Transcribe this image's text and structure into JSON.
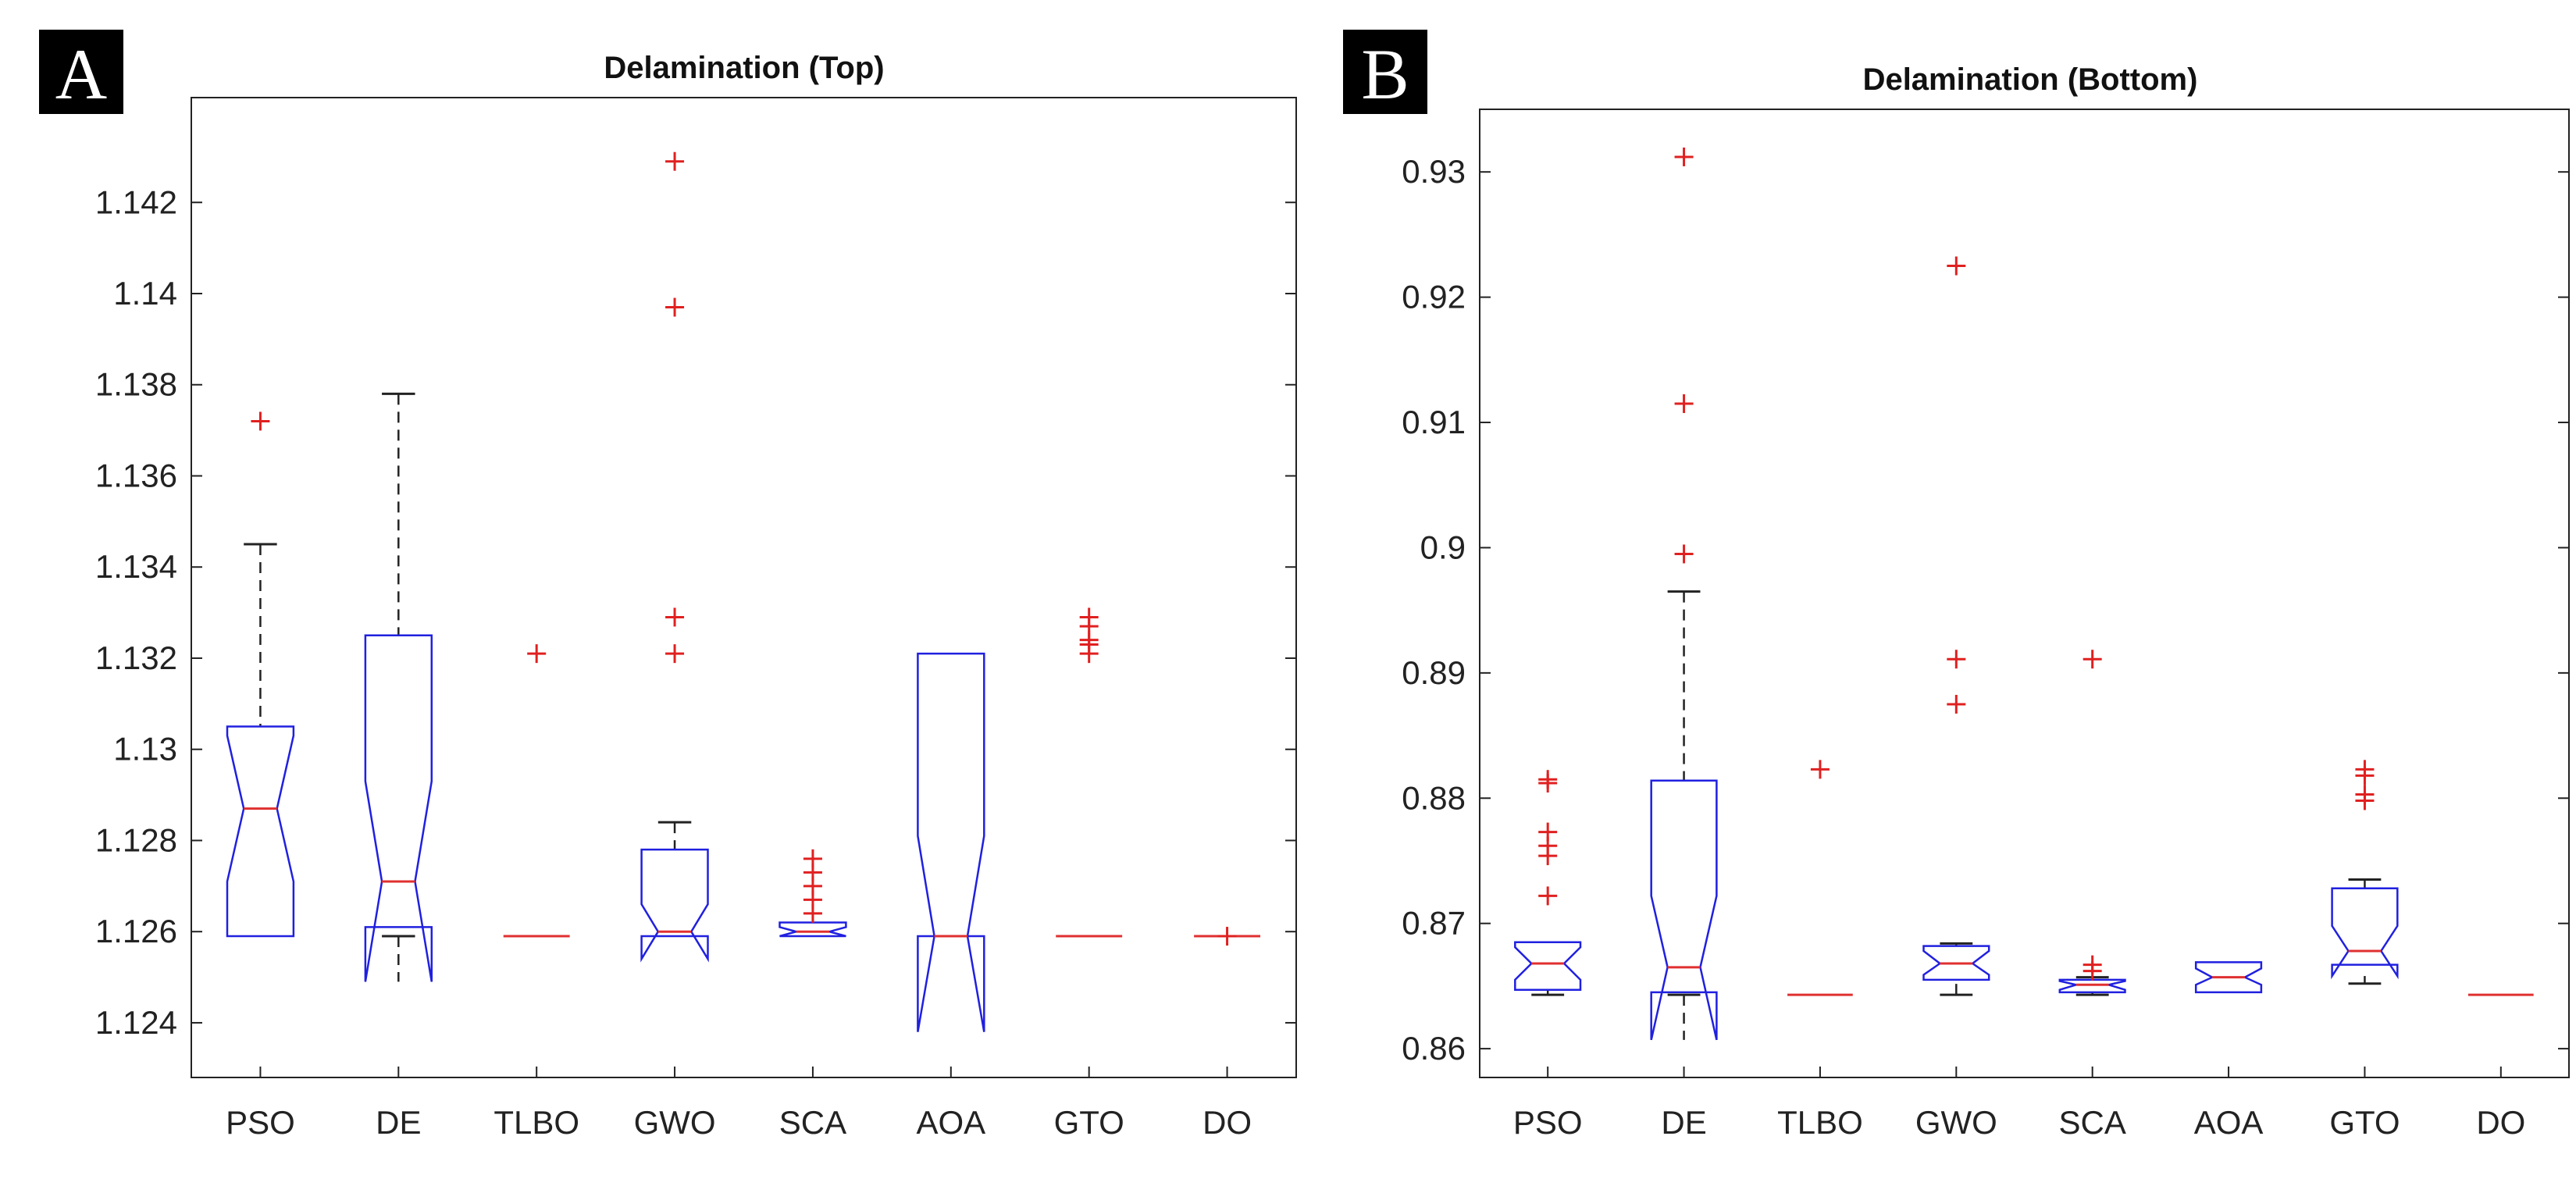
{
  "figure": {
    "panels": [
      {
        "label": "A",
        "label_bg": "#000000",
        "label_color": "#ffffff"
      },
      {
        "label": "B",
        "label_bg": "#000000",
        "label_color": "#ffffff"
      }
    ]
  },
  "colors": {
    "box": "#2020e0",
    "median": "#e03030",
    "outlier": "#e02020",
    "whisker": "#222222",
    "axis": "#222222"
  },
  "chart_data": [
    {
      "type": "boxplot",
      "panel": "A",
      "title": "Delamination (Top)",
      "xlabel": "",
      "ylabel": "",
      "categories": [
        "PSO",
        "DE",
        "TLBO",
        "GWO",
        "SCA",
        "AOA",
        "GTO",
        "DO"
      ],
      "ylim": [
        1.1228,
        1.1443
      ],
      "yticks": [
        1.124,
        1.126,
        1.128,
        1.13,
        1.132,
        1.134,
        1.136,
        1.138,
        1.14,
        1.142
      ],
      "ytick_labels": [
        "1.124",
        "1.126",
        "1.128",
        "1.13",
        "1.132",
        "1.134",
        "1.136",
        "1.138",
        "1.14",
        "1.142"
      ],
      "grid": false,
      "boxes": [
        {
          "category": "PSO",
          "q1": 1.1259,
          "median": 1.1287,
          "q3": 1.1305,
          "notch_lo": 1.1271,
          "notch_hi": 1.1303,
          "whisker_lo": 1.1259,
          "whisker_hi": 1.1345,
          "outliers": [
            1.1372
          ]
        },
        {
          "category": "DE",
          "q1": 1.1261,
          "median": 1.1271,
          "q3": 1.1325,
          "notch_lo": 1.1249,
          "notch_hi": 1.1293,
          "whisker_lo": 1.1259,
          "whisker_hi": 1.1378,
          "outliers": []
        },
        {
          "category": "TLBO",
          "q1": 1.1259,
          "median": 1.1259,
          "q3": 1.1259,
          "notch_lo": 1.1259,
          "notch_hi": 1.1259,
          "whisker_lo": 1.1259,
          "whisker_hi": 1.1259,
          "outliers": [
            1.1321
          ]
        },
        {
          "category": "GWO",
          "q1": 1.1259,
          "median": 1.126,
          "q3": 1.1278,
          "notch_lo": 1.1254,
          "notch_hi": 1.1266,
          "whisker_lo": 1.1259,
          "whisker_hi": 1.1284,
          "outliers": [
            1.1321,
            1.1329,
            1.1397,
            1.1429
          ]
        },
        {
          "category": "SCA",
          "q1": 1.1259,
          "median": 1.126,
          "q3": 1.1262,
          "notch_lo": 1.1259,
          "notch_hi": 1.1261,
          "whisker_lo": 1.1259,
          "whisker_hi": 1.1262,
          "outliers": [
            1.1264,
            1.1267,
            1.127,
            1.1273,
            1.1276
          ]
        },
        {
          "category": "AOA",
          "q1": 1.1259,
          "median": 1.1259,
          "q3": 1.1321,
          "notch_lo": 1.1238,
          "notch_hi": 1.1281,
          "whisker_lo": 1.1259,
          "whisker_hi": 1.1321,
          "outliers": []
        },
        {
          "category": "GTO",
          "q1": 1.1259,
          "median": 1.1259,
          "q3": 1.1259,
          "notch_lo": 1.1259,
          "notch_hi": 1.1259,
          "whisker_lo": 1.1259,
          "whisker_hi": 1.1259,
          "outliers": [
            1.1321,
            1.1323,
            1.1324,
            1.1327,
            1.1329
          ]
        },
        {
          "category": "DO",
          "q1": 1.1259,
          "median": 1.1259,
          "q3": 1.1259,
          "notch_lo": 1.1259,
          "notch_hi": 1.1259,
          "whisker_lo": 1.1259,
          "whisker_hi": 1.1259,
          "outliers": [
            1.1259
          ]
        }
      ]
    },
    {
      "type": "boxplot",
      "panel": "B",
      "title": "Delamination (Bottom)",
      "xlabel": "",
      "ylabel": "",
      "categories": [
        "PSO",
        "DE",
        "TLBO",
        "GWO",
        "SCA",
        "AOA",
        "GTO",
        "DO"
      ],
      "ylim": [
        0.8577,
        0.935
      ],
      "yticks": [
        0.86,
        0.87,
        0.88,
        0.89,
        0.9,
        0.91,
        0.92,
        0.93
      ],
      "ytick_labels": [
        "0.86",
        "0.87",
        "0.88",
        "0.89",
        "0.9",
        "0.91",
        "0.92",
        "0.93"
      ],
      "grid": false,
      "boxes": [
        {
          "category": "PSO",
          "q1": 0.8647,
          "median": 0.8668,
          "q3": 0.8685,
          "notch_lo": 0.8655,
          "notch_hi": 0.8681,
          "whisker_lo": 0.8643,
          "whisker_hi": 0.8685,
          "outliers": [
            0.8722,
            0.8754,
            0.8762,
            0.8773,
            0.8812,
            0.8815
          ]
        },
        {
          "category": "DE",
          "q1": 0.8645,
          "median": 0.8665,
          "q3": 0.8814,
          "notch_lo": 0.8607,
          "notch_hi": 0.8722,
          "whisker_lo": 0.8643,
          "whisker_hi": 0.8965,
          "outliers": [
            0.8995,
            0.9115,
            0.9312
          ]
        },
        {
          "category": "TLBO",
          "q1": 0.8643,
          "median": 0.8643,
          "q3": 0.8643,
          "notch_lo": 0.8643,
          "notch_hi": 0.8643,
          "whisker_lo": 0.8643,
          "whisker_hi": 0.8643,
          "outliers": [
            0.8823
          ]
        },
        {
          "category": "GWO",
          "q1": 0.8655,
          "median": 0.8668,
          "q3": 0.8682,
          "notch_lo": 0.8659,
          "notch_hi": 0.8678,
          "whisker_lo": 0.8643,
          "whisker_hi": 0.8684,
          "outliers": [
            0.8875,
            0.8911,
            0.9225
          ]
        },
        {
          "category": "SCA",
          "q1": 0.8645,
          "median": 0.8651,
          "q3": 0.8655,
          "notch_lo": 0.8647,
          "notch_hi": 0.8654,
          "whisker_lo": 0.8643,
          "whisker_hi": 0.8657,
          "outliers": [
            0.8662,
            0.8667,
            0.8911
          ]
        },
        {
          "category": "AOA",
          "q1": 0.8645,
          "median": 0.8657,
          "q3": 0.8669,
          "notch_lo": 0.8651,
          "notch_hi": 0.8664,
          "whisker_lo": 0.8645,
          "whisker_hi": 0.8669,
          "outliers": []
        },
        {
          "category": "GTO",
          "q1": 0.8667,
          "median": 0.8678,
          "q3": 0.8728,
          "notch_lo": 0.8658,
          "notch_hi": 0.8698,
          "whisker_lo": 0.8652,
          "whisker_hi": 0.8735,
          "outliers": [
            0.8798,
            0.8803,
            0.8818,
            0.8823
          ]
        },
        {
          "category": "DO",
          "q1": 0.8643,
          "median": 0.8643,
          "q3": 0.8643,
          "notch_lo": 0.8643,
          "notch_hi": 0.8643,
          "whisker_lo": 0.8643,
          "whisker_hi": 0.8643,
          "outliers": []
        }
      ]
    }
  ]
}
